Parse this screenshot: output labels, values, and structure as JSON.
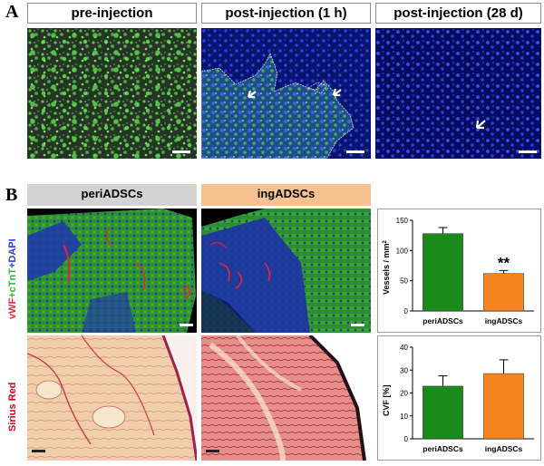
{
  "panel_a": {
    "letter": "A",
    "headers": [
      "pre-injection",
      "post-injection (1 h)",
      "post-injection (28 d)"
    ]
  },
  "panel_b": {
    "letter": "B",
    "groups": [
      "periADSCs",
      "ingADSCs"
    ],
    "group_colors": [
      "#d3d3d3",
      "#f7c28f"
    ],
    "row_labels": {
      "stain_row1": {
        "vwf": "vWF",
        "sep1": "+",
        "ctnt": "cTnT",
        "sep2": "+",
        "dapi": "DAPI"
      },
      "stain_row2": "Sirius Red"
    },
    "significance": "**"
  },
  "colors": {
    "green_bar": "#1a8a1a",
    "orange_bar": "#f5841f",
    "vwf": "#e8243c",
    "ctnt": "#2fb52f",
    "dapi": "#2a3fdc",
    "sirius": "#d0021b"
  },
  "chart_data": [
    {
      "type": "bar",
      "categories": [
        "periADSCs",
        "ingADSCs"
      ],
      "values": [
        128,
        62
      ],
      "errors": [
        10,
        5
      ],
      "ylabel": "Vessels / mm²",
      "ylabel_main": "Vessels / mm",
      "ylabel_sup": "2",
      "ylim": [
        0,
        150
      ],
      "yticks": [
        0,
        50,
        100,
        150
      ],
      "annotation": "**",
      "grid": false
    },
    {
      "type": "bar",
      "categories": [
        "periADSCs",
        "ingADSCs"
      ],
      "values": [
        23,
        28.5
      ],
      "errors": [
        4.5,
        6
      ],
      "ylabel": "CVF [%]",
      "ylim": [
        0,
        40
      ],
      "yticks": [
        0,
        10,
        20,
        30,
        40
      ],
      "grid": false
    }
  ]
}
